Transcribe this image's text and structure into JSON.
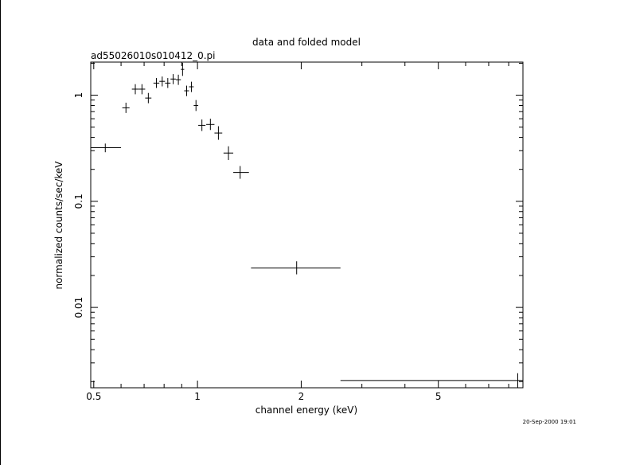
{
  "chart_data": {
    "type": "scatter",
    "title": "data and folded model",
    "subtitle": "ad55026010s010412_0.pi",
    "xlabel": "channel energy (keV)",
    "ylabel": "normalized counts/sec/keV",
    "xscale": "log",
    "yscale": "log",
    "xlim": [
      0.49,
      8.8
    ],
    "ylim": [
      0.00175,
      2.05
    ],
    "x_tick_labels": [
      "0.5",
      "1",
      "2",
      "5"
    ],
    "x_tick_values": [
      0.5,
      1,
      2,
      5
    ],
    "y_tick_labels": [
      "0.01",
      "0.1",
      "1"
    ],
    "y_tick_values": [
      0.01,
      0.1,
      1
    ],
    "grid": false,
    "series": [
      {
        "points": [
          {
            "x": 0.54,
            "y": 0.32,
            "xlo": 0.49,
            "xhi": 0.6,
            "ylo": 0.29,
            "yhi": 0.35
          },
          {
            "x": 0.62,
            "y": 0.76,
            "xlo": 0.605,
            "xhi": 0.635,
            "ylo": 0.68,
            "yhi": 0.85
          },
          {
            "x": 0.66,
            "y": 1.14,
            "xlo": 0.645,
            "xhi": 0.675,
            "ylo": 1.02,
            "yhi": 1.27
          },
          {
            "x": 0.69,
            "y": 1.14,
            "xlo": 0.675,
            "xhi": 0.705,
            "ylo": 1.02,
            "yhi": 1.27
          },
          {
            "x": 0.72,
            "y": 0.94,
            "xlo": 0.705,
            "xhi": 0.735,
            "ylo": 0.84,
            "yhi": 1.05
          },
          {
            "x": 0.76,
            "y": 1.3,
            "xlo": 0.745,
            "xhi": 0.775,
            "ylo": 1.17,
            "yhi": 1.45
          },
          {
            "x": 0.79,
            "y": 1.35,
            "xlo": 0.775,
            "xhi": 0.805,
            "ylo": 1.21,
            "yhi": 1.5
          },
          {
            "x": 0.82,
            "y": 1.3,
            "xlo": 0.805,
            "xhi": 0.835,
            "ylo": 1.17,
            "yhi": 1.45
          },
          {
            "x": 0.85,
            "y": 1.42,
            "xlo": 0.835,
            "xhi": 0.865,
            "ylo": 1.27,
            "yhi": 1.58
          },
          {
            "x": 0.88,
            "y": 1.4,
            "xlo": 0.865,
            "xhi": 0.895,
            "ylo": 1.25,
            "yhi": 1.56
          },
          {
            "x": 0.905,
            "y": 1.75,
            "xlo": 0.895,
            "xhi": 0.915,
            "ylo": 1.52,
            "yhi": 2.02
          },
          {
            "x": 0.93,
            "y": 1.1,
            "xlo": 0.915,
            "xhi": 0.945,
            "ylo": 0.98,
            "yhi": 1.23
          },
          {
            "x": 0.96,
            "y": 1.2,
            "xlo": 0.945,
            "xhi": 0.975,
            "ylo": 1.07,
            "yhi": 1.34
          },
          {
            "x": 0.99,
            "y": 0.8,
            "xlo": 0.975,
            "xhi": 1.005,
            "ylo": 0.71,
            "yhi": 0.9
          },
          {
            "x": 1.03,
            "y": 0.52,
            "xlo": 1.005,
            "xhi": 1.055,
            "ylo": 0.46,
            "yhi": 0.59
          },
          {
            "x": 1.09,
            "y": 0.53,
            "xlo": 1.06,
            "xhi": 1.12,
            "ylo": 0.47,
            "yhi": 0.6
          },
          {
            "x": 1.15,
            "y": 0.44,
            "xlo": 1.12,
            "xhi": 1.18,
            "ylo": 0.38,
            "yhi": 0.51
          },
          {
            "x": 1.23,
            "y": 0.285,
            "xlo": 1.19,
            "xhi": 1.27,
            "ylo": 0.245,
            "yhi": 0.33
          },
          {
            "x": 1.33,
            "y": 0.187,
            "xlo": 1.27,
            "xhi": 1.41,
            "ylo": 0.163,
            "yhi": 0.215
          },
          {
            "x": 1.94,
            "y": 0.0235,
            "xlo": 1.43,
            "xhi": 2.6,
            "ylo": 0.0205,
            "yhi": 0.0272
          },
          {
            "x": 8.5,
            "y": 0.00205,
            "xlo": 2.6,
            "xhi": 8.8,
            "ylo": 0.00175,
            "yhi": 0.0024
          }
        ]
      }
    ]
  },
  "timestamp": "20-Sep-2000 19:01"
}
